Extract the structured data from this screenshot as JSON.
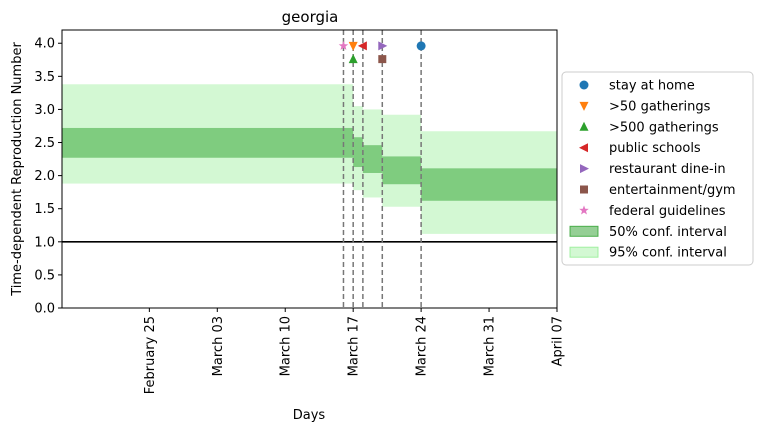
{
  "chart_data": {
    "type": "area",
    "title": "georgia",
    "xlabel": "Days",
    "ylabel": "Time-dependent Reproduction Number",
    "xlim": [
      "2020-02-16",
      "2020-04-07"
    ],
    "ylim": [
      0,
      4.2
    ],
    "grid": false,
    "legend_position": "right",
    "x_ticks": [
      {
        "date": "2020-02-25",
        "label": "February 25"
      },
      {
        "date": "2020-03-03",
        "label": "March 03"
      },
      {
        "date": "2020-03-10",
        "label": "March 10"
      },
      {
        "date": "2020-03-17",
        "label": "March 17"
      },
      {
        "date": "2020-03-24",
        "label": "March 24"
      },
      {
        "date": "2020-03-31",
        "label": "March 31"
      },
      {
        "date": "2020-04-07",
        "label": "April 07"
      }
    ],
    "y_ticks": [
      {
        "value": 0.0,
        "label": "0.0"
      },
      {
        "value": 0.5,
        "label": "0.5"
      },
      {
        "value": 1.0,
        "label": "1.0"
      },
      {
        "value": 1.5,
        "label": "1.5"
      },
      {
        "value": 2.0,
        "label": "2.0"
      },
      {
        "value": 2.5,
        "label": "2.5"
      },
      {
        "value": 3.0,
        "label": "3.0"
      },
      {
        "value": 3.5,
        "label": "3.5"
      },
      {
        "value": 4.0,
        "label": "4.0"
      }
    ],
    "reference_line": {
      "y": 1.0,
      "color": "#000000"
    },
    "intervals": [
      {
        "name": "50% conf. interval",
        "color": "#2ca02c",
        "opacity": 0.5,
        "segments": [
          {
            "x_start": "2020-02-16",
            "x_end": "2020-03-17",
            "low": 2.27,
            "high": 2.72
          },
          {
            "x_start": "2020-03-17",
            "x_end": "2020-03-18",
            "low": 2.13,
            "high": 2.58
          },
          {
            "x_start": "2020-03-18",
            "x_end": "2020-03-20",
            "low": 2.04,
            "high": 2.46
          },
          {
            "x_start": "2020-03-20",
            "x_end": "2020-03-24",
            "low": 1.87,
            "high": 2.29
          },
          {
            "x_start": "2020-03-24",
            "x_end": "2020-04-07",
            "low": 1.62,
            "high": 2.11
          }
        ]
      },
      {
        "name": "95% conf. interval",
        "color": "#90ee90",
        "opacity": 0.4,
        "segments": [
          {
            "x_start": "2020-02-16",
            "x_end": "2020-03-17",
            "low": 1.88,
            "high": 3.38
          },
          {
            "x_start": "2020-03-17",
            "x_end": "2020-03-18",
            "low": 1.78,
            "high": 3.05
          },
          {
            "x_start": "2020-03-18",
            "x_end": "2020-03-20",
            "low": 1.67,
            "high": 3.0
          },
          {
            "x_start": "2020-03-20",
            "x_end": "2020-03-24",
            "low": 1.53,
            "high": 2.92
          },
          {
            "x_start": "2020-03-24",
            "x_end": "2020-04-07",
            "low": 1.12,
            "high": 2.67
          }
        ]
      }
    ],
    "interventions": [
      {
        "name": "stay at home",
        "date": "2020-03-24",
        "y": 3.96,
        "marker": "circle",
        "color": "#1f77b4"
      },
      {
        "name": ">50 gatherings",
        "date": "2020-03-17",
        "y": 3.96,
        "marker": "triangle-down",
        "color": "#ff7f0e"
      },
      {
        "name": ">500 gatherings",
        "date": "2020-03-17",
        "y": 3.76,
        "marker": "triangle-up",
        "color": "#2ca02c"
      },
      {
        "name": "public schools",
        "date": "2020-03-18",
        "y": 3.96,
        "marker": "triangle-left",
        "color": "#d62728"
      },
      {
        "name": "restaurant dine-in",
        "date": "2020-03-20",
        "y": 3.96,
        "marker": "triangle-right",
        "color": "#9467bd"
      },
      {
        "name": "entertainment/gym",
        "date": "2020-03-20",
        "y": 3.76,
        "marker": "square",
        "color": "#8c564b"
      },
      {
        "name": "federal guidelines",
        "date": "2020-03-16",
        "y": 3.96,
        "marker": "star",
        "color": "#e377c2"
      }
    ],
    "vlines": [
      "2020-03-16",
      "2020-03-17",
      "2020-03-18",
      "2020-03-20",
      "2020-03-24"
    ]
  }
}
